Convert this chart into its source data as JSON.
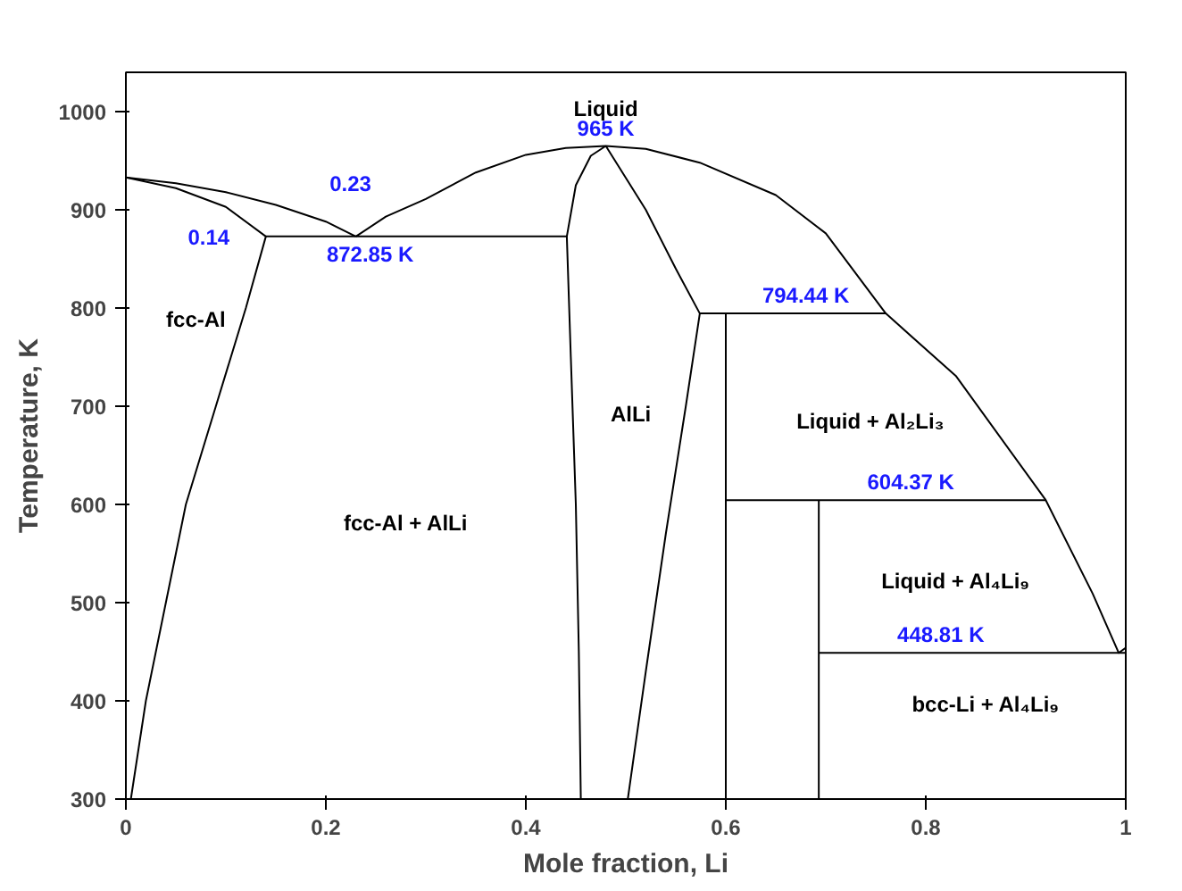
{
  "chart_data": {
    "type": "line",
    "xlabel": "Mole fraction, Li",
    "ylabel": "Temperature, K",
    "xlim": [
      0,
      1
    ],
    "ylim": [
      300,
      1040
    ],
    "xticks": [
      {
        "value": 0,
        "label": "0"
      },
      0.2,
      0.4,
      0.6,
      0.8,
      {
        "value": 1,
        "label": "1"
      }
    ],
    "yticks": [
      300,
      400,
      500,
      600,
      700,
      800,
      900,
      1000
    ],
    "grid": false,
    "marker": "none",
    "line_style": "solid",
    "series": [
      {
        "color": "#000000",
        "x": [
          0,
          0.05,
          0.1,
          0.15,
          0.2,
          0.23
        ],
        "values": [
          933,
          927,
          918,
          905,
          888,
          872.85
        ]
      },
      {
        "color": "#000000",
        "x": [
          0.23,
          0.26,
          0.3,
          0.35,
          0.4,
          0.44,
          0.48,
          0.52,
          0.574,
          0.65,
          0.7,
          0.76,
          0.83,
          0.92,
          0.967,
          0.993,
          1.0
        ],
        "values": [
          872.85,
          893,
          911,
          938,
          956,
          963,
          965,
          962,
          948,
          915,
          876,
          794.44,
          731,
          604.37,
          509,
          448.81,
          454
        ]
      },
      {
        "color": "#000000",
        "x": [
          0,
          0.05,
          0.1,
          0.14,
          0.12,
          0.09,
          0.06,
          0.04,
          0.02,
          0.005
        ],
        "values": [
          933,
          922,
          903,
          872.85,
          800,
          700,
          600,
          500,
          400,
          300
        ]
      },
      {
        "color": "#000000",
        "x": [
          0.48,
          0.465,
          0.45,
          0.441,
          0.445,
          0.45,
          0.453,
          0.455
        ],
        "values": [
          965,
          955,
          925,
          872.85,
          750,
          600,
          450,
          300
        ]
      },
      {
        "color": "#000000",
        "x": [
          0.48,
          0.52,
          0.55,
          0.574,
          0.56,
          0.54,
          0.52,
          0.502
        ],
        "values": [
          965,
          900,
          840,
          794.44,
          700,
          570,
          430,
          300
        ]
      },
      {
        "color": "#000000",
        "x": [
          0.14,
          0.441
        ],
        "values": [
          872.85,
          872.85
        ]
      },
      {
        "color": "#000000",
        "x": [
          0.574,
          0.76
        ],
        "values": [
          794.44,
          794.44
        ]
      },
      {
        "color": "#000000",
        "x": [
          0.6,
          0.6
        ],
        "values": [
          794.44,
          300
        ]
      },
      {
        "color": "#000000",
        "x": [
          0.6,
          0.92
        ],
        "values": [
          604.37,
          604.37
        ]
      },
      {
        "color": "#000000",
        "x": [
          0.693,
          0.693
        ],
        "values": [
          604.37,
          300
        ]
      },
      {
        "color": "#000000",
        "x": [
          0.693,
          1.0
        ],
        "values": [
          448.81,
          448.81
        ]
      }
    ],
    "annotations": [
      "Liquid",
      {
        "text": "965 K",
        "x": 0.48,
        "y": 965
      },
      {
        "text": "0.23",
        "x": 0.23,
        "y": 872.85
      },
      {
        "text": "0.14",
        "x": 0.14,
        "y": 872.85
      },
      {
        "text": "872.85 K",
        "x": 0.23,
        "y": 872.85
      },
      "fcc-Al",
      "AlLi",
      "fcc-Al + AlLi",
      {
        "text": "794.44 K",
        "x": 0.68,
        "y": 794.44
      },
      "Liquid + Al₂Li₃",
      {
        "text": "604.37 K",
        "x": 0.785,
        "y": 604.37
      },
      "Liquid + Al₄Li₉",
      {
        "text": "448.81 K",
        "x": 0.815,
        "y": 448.81
      },
      "bcc-Li + Al₄Li₉"
    ]
  }
}
